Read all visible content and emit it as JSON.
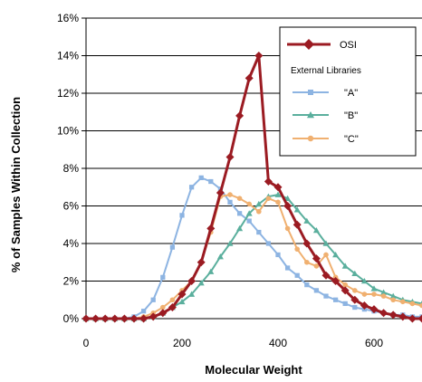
{
  "chart_data": {
    "type": "line",
    "xlabel": "Molecular Weight",
    "ylabel": "% of Samples Within Collection",
    "xlim": [
      0,
      700
    ],
    "ylim": [
      0,
      16
    ],
    "x_ticks": [
      0,
      200,
      400,
      600
    ],
    "x_tick_labels": [
      "0",
      "200",
      "400",
      "600"
    ],
    "y_ticks": [
      0,
      2,
      4,
      6,
      8,
      10,
      12,
      14,
      16
    ],
    "y_tick_labels": [
      "0%",
      "2%",
      "4%",
      "6%",
      "8%",
      "10%",
      "12%",
      "14%",
      "16%"
    ],
    "grid": "horizontal",
    "legend": {
      "placement": "top-right",
      "header": "External Libraries",
      "items": [
        "OSI",
        "\"A\"",
        "\"B\"",
        "\"C\""
      ]
    },
    "series": [
      {
        "name": "OSI",
        "color": "#9b1b22",
        "marker": "diamond",
        "line_width": 3,
        "points": [
          [
            0,
            0
          ],
          [
            20,
            0
          ],
          [
            40,
            0
          ],
          [
            60,
            0
          ],
          [
            80,
            0
          ],
          [
            100,
            0
          ],
          [
            120,
            0
          ],
          [
            140,
            0.1
          ],
          [
            160,
            0.3
          ],
          [
            180,
            0.6
          ],
          [
            200,
            1.3
          ],
          [
            220,
            2.0
          ],
          [
            240,
            3.0
          ],
          [
            260,
            4.8
          ],
          [
            280,
            6.7
          ],
          [
            300,
            8.6
          ],
          [
            320,
            10.8
          ],
          [
            340,
            12.8
          ],
          [
            360,
            14.0
          ],
          [
            380,
            7.3
          ],
          [
            400,
            7.0
          ],
          [
            420,
            6.0
          ],
          [
            440,
            5.0
          ],
          [
            460,
            4.0
          ],
          [
            480,
            3.2
          ],
          [
            500,
            2.3
          ],
          [
            520,
            2.0
          ],
          [
            540,
            1.5
          ],
          [
            560,
            1.0
          ],
          [
            580,
            0.7
          ],
          [
            600,
            0.5
          ],
          [
            620,
            0.3
          ],
          [
            640,
            0.2
          ],
          [
            660,
            0.1
          ],
          [
            680,
            0
          ],
          [
            700,
            0
          ]
        ]
      },
      {
        "name": "\"A\"",
        "color": "#8db4e2",
        "marker": "square",
        "line_width": 2,
        "points": [
          [
            0,
            0
          ],
          [
            20,
            0
          ],
          [
            40,
            0
          ],
          [
            60,
            0
          ],
          [
            80,
            0
          ],
          [
            100,
            0.1
          ],
          [
            120,
            0.4
          ],
          [
            140,
            1.0
          ],
          [
            160,
            2.2
          ],
          [
            180,
            3.8
          ],
          [
            200,
            5.5
          ],
          [
            220,
            7.0
          ],
          [
            240,
            7.5
          ],
          [
            260,
            7.3
          ],
          [
            280,
            6.9
          ],
          [
            300,
            6.2
          ],
          [
            320,
            5.6
          ],
          [
            340,
            5.2
          ],
          [
            360,
            4.6
          ],
          [
            380,
            4.0
          ],
          [
            400,
            3.4
          ],
          [
            420,
            2.7
          ],
          [
            440,
            2.3
          ],
          [
            460,
            1.8
          ],
          [
            480,
            1.5
          ],
          [
            500,
            1.2
          ],
          [
            520,
            1.0
          ],
          [
            540,
            0.8
          ],
          [
            560,
            0.6
          ],
          [
            580,
            0.5
          ],
          [
            600,
            0.4
          ],
          [
            620,
            0.3
          ],
          [
            640,
            0.2
          ],
          [
            660,
            0.2
          ],
          [
            680,
            0.1
          ],
          [
            700,
            0.1
          ]
        ]
      },
      {
        "name": "\"B\"",
        "color": "#5aaf9d",
        "marker": "triangle",
        "line_width": 2,
        "points": [
          [
            0,
            0
          ],
          [
            20,
            0
          ],
          [
            40,
            0
          ],
          [
            60,
            0
          ],
          [
            80,
            0
          ],
          [
            100,
            0
          ],
          [
            120,
            0
          ],
          [
            140,
            0.1
          ],
          [
            160,
            0.3
          ],
          [
            180,
            0.6
          ],
          [
            200,
            0.9
          ],
          [
            220,
            1.3
          ],
          [
            240,
            1.9
          ],
          [
            260,
            2.5
          ],
          [
            280,
            3.3
          ],
          [
            300,
            4.0
          ],
          [
            320,
            4.8
          ],
          [
            340,
            5.6
          ],
          [
            360,
            6.1
          ],
          [
            380,
            6.5
          ],
          [
            400,
            6.6
          ],
          [
            420,
            6.4
          ],
          [
            440,
            5.8
          ],
          [
            460,
            5.2
          ],
          [
            480,
            4.7
          ],
          [
            500,
            4.0
          ],
          [
            520,
            3.4
          ],
          [
            540,
            2.8
          ],
          [
            560,
            2.4
          ],
          [
            580,
            2.0
          ],
          [
            600,
            1.6
          ],
          [
            620,
            1.4
          ],
          [
            640,
            1.2
          ],
          [
            660,
            1.0
          ],
          [
            680,
            0.9
          ],
          [
            700,
            0.8
          ]
        ]
      },
      {
        "name": "\"C\"",
        "color": "#f0b070",
        "marker": "circle",
        "line_width": 2,
        "points": [
          [
            0,
            0
          ],
          [
            20,
            0
          ],
          [
            40,
            0
          ],
          [
            60,
            0
          ],
          [
            80,
            0
          ],
          [
            100,
            0
          ],
          [
            120,
            0.1
          ],
          [
            140,
            0.3
          ],
          [
            160,
            0.6
          ],
          [
            180,
            1.0
          ],
          [
            200,
            1.5
          ],
          [
            220,
            2.0
          ],
          [
            240,
            3.0
          ],
          [
            260,
            4.6
          ],
          [
            280,
            6.5
          ],
          [
            300,
            6.6
          ],
          [
            320,
            6.4
          ],
          [
            340,
            6.1
          ],
          [
            360,
            5.7
          ],
          [
            380,
            6.4
          ],
          [
            400,
            6.2
          ],
          [
            420,
            4.8
          ],
          [
            440,
            3.7
          ],
          [
            460,
            3.0
          ],
          [
            480,
            2.8
          ],
          [
            500,
            3.4
          ],
          [
            520,
            2.2
          ],
          [
            540,
            1.8
          ],
          [
            560,
            1.5
          ],
          [
            580,
            1.3
          ],
          [
            600,
            1.3
          ],
          [
            620,
            1.2
          ],
          [
            640,
            1.0
          ],
          [
            660,
            0.9
          ],
          [
            680,
            0.8
          ],
          [
            700,
            0.7
          ]
        ]
      }
    ]
  }
}
